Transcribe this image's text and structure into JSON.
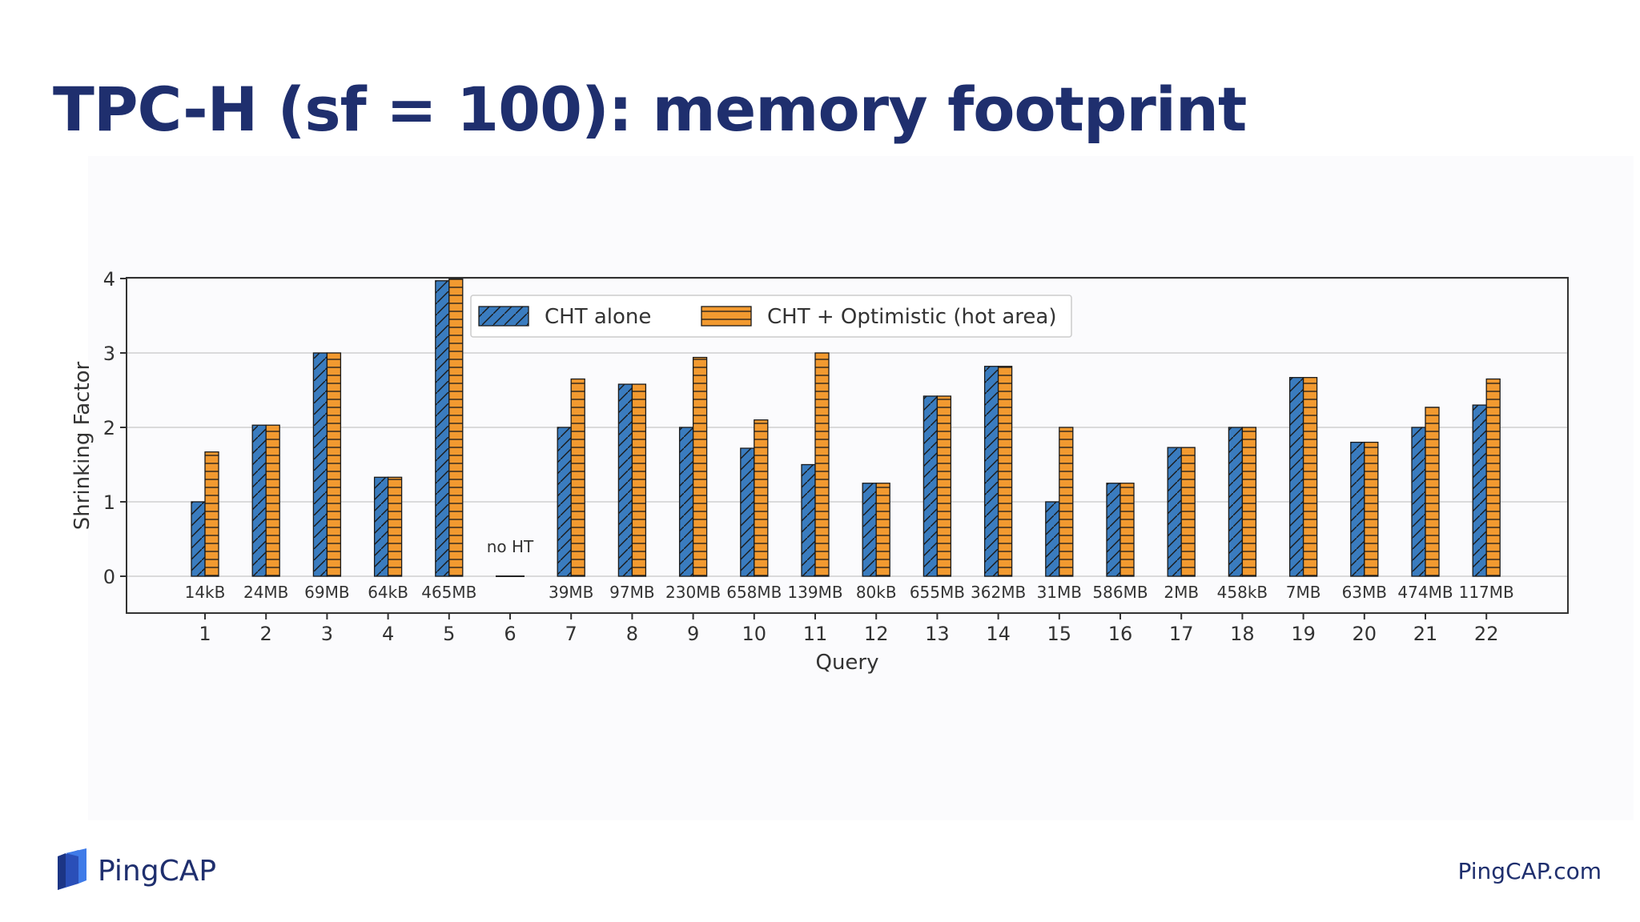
{
  "slide": {
    "title": "TPC-H (sf = 100): memory footprint"
  },
  "footer": {
    "logo_text": "PingCAP",
    "url": "PingCAP.com"
  },
  "colors": {
    "title": "#1f2f6e",
    "series_cht": "#3a7cbf",
    "series_opt": "#f29a30",
    "axis": "#333333",
    "grid": "#d0d0d0"
  },
  "chart_data": {
    "type": "bar",
    "xlabel": "Query",
    "ylabel": "Shrinking Factor",
    "ylim": [
      0,
      4
    ],
    "yticks": [
      0,
      1,
      2,
      3,
      4
    ],
    "grid": true,
    "legend_position": "top-left",
    "categories": [
      "1",
      "2",
      "3",
      "4",
      "5",
      "6",
      "7",
      "8",
      "9",
      "10",
      "11",
      "12",
      "13",
      "14",
      "15",
      "16",
      "17",
      "18",
      "19",
      "20",
      "21",
      "22"
    ],
    "size_labels": [
      "14kB",
      "24MB",
      "69MB",
      "64kB",
      "465MB",
      "",
      "39MB",
      "97MB",
      "230MB",
      "658MB",
      "139MB",
      "80kB",
      "655MB",
      "362MB",
      "31MB",
      "586MB",
      "2MB",
      "458kB",
      "7MB",
      "63MB",
      "474MB",
      "117MB"
    ],
    "annotation": {
      "category": "6",
      "text": "no HT"
    },
    "series": [
      {
        "name": "CHT alone",
        "pattern": "diagonal-hatch",
        "values": [
          1.0,
          2.03,
          3.0,
          1.33,
          3.97,
          0,
          2.0,
          2.58,
          2.0,
          1.72,
          1.5,
          1.25,
          2.42,
          2.82,
          1.0,
          1.25,
          1.73,
          2.0,
          2.67,
          1.8,
          2.0,
          2.3
        ]
      },
      {
        "name": "CHT + Optimistic (hot area)",
        "pattern": "horizontal-hatch",
        "values": [
          1.67,
          2.03,
          3.0,
          1.33,
          4.0,
          0,
          2.65,
          2.58,
          2.94,
          2.1,
          3.0,
          1.25,
          2.42,
          2.82,
          2.0,
          1.25,
          1.73,
          2.0,
          2.67,
          1.8,
          2.27,
          2.65
        ]
      }
    ]
  }
}
